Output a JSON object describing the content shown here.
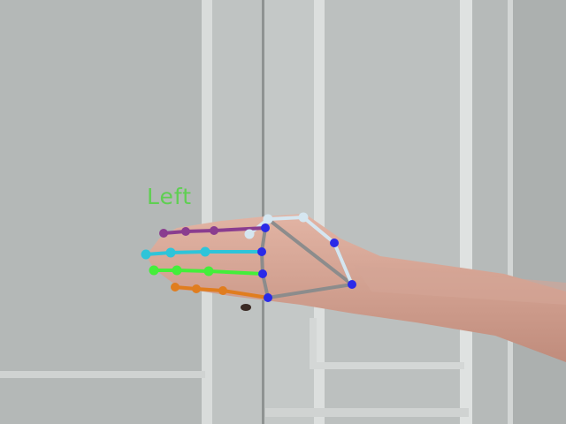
{
  "detection": {
    "handedness_label": "Left"
  },
  "colors": {
    "thumb": "#d5e6f0",
    "index": "#8a3d8f",
    "middle": "#2ec4d9",
    "ring": "#44ee3a",
    "pinky": "#e07d1f",
    "palm": "#8c8c8c",
    "joint": "#2a2ae8",
    "label": "#5fcf52"
  }
}
